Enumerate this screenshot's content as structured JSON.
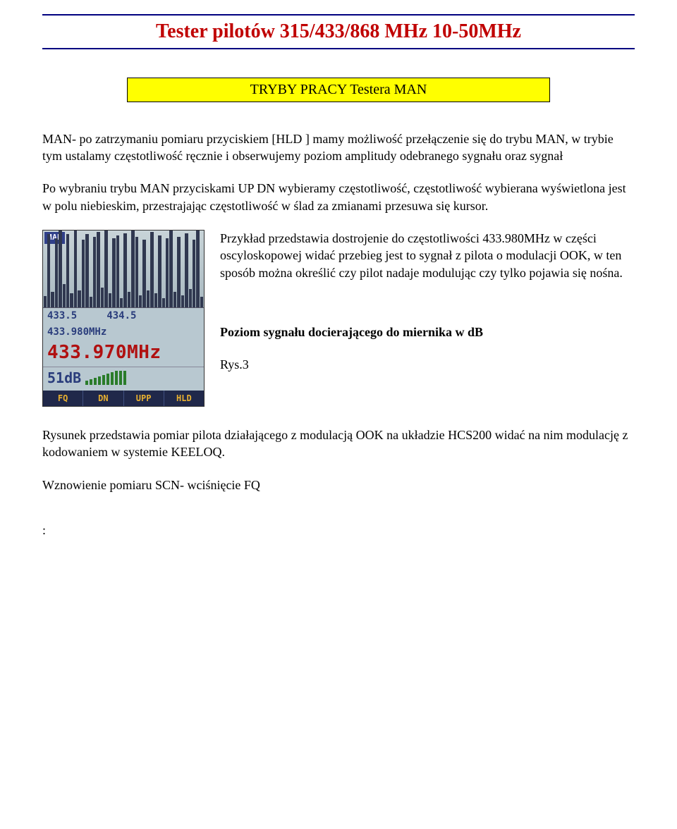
{
  "title": "Tester pilotów 315/433/868 MHz  10-50MHz",
  "banner": "TRYBY PRACY Testera   MAN",
  "intro": "MAN- po zatrzymaniu pomiaru przyciskiem  [HLD ] mamy możliwość przełączenie się do trybu MAN, w trybie tym ustalamy częstotliwość ręcznie i obserwujemy poziom amplitudy odebranego sygnału oraz sygnał",
  "intro2": "Po wybraniu trybu MAN przyciskami UP DN wybieramy częstotliwość, częstotliwość wybierana wyświetlona jest w polu niebieskim, przestrajając częstotliwość w ślad za zmianami przesuwa się kursor.",
  "side_para1": "Przykład przedstawia dostrojenie do częstotliwości 433.980MHz  w części oscyloskopowej widać przebieg jest to sygnał z pilota o modulacji OOK, w ten sposób można określić czy pilot nadaje modulując czy tylko pojawia się nośna.",
  "side_para2": "Poziom sygnału docierającego do miernika w dB",
  "side_para3": "Rys.3",
  "footer1": "Rysunek przedstawia pomiar pilota działającego z modulacją OOK na układzie HCS200 widać na nim modulację z kodowaniem w systemie KEELOQ.",
  "footer2": "Wznowienie pomiaru SCN-  wciśnięcie FQ",
  "colon": ":",
  "lcd": {
    "mode_tag": "MAN",
    "band_low": "433.5",
    "band_high": "434.5",
    "band_mid": "433.980MHz",
    "freq_big": "433.970MHz",
    "db": "51dB",
    "softkeys": [
      "FQ",
      "DN",
      "UPP",
      "HLD"
    ],
    "spectrum_heights": [
      15,
      95,
      20,
      90,
      100,
      30,
      95,
      18,
      100,
      22,
      88,
      95,
      14,
      92,
      98,
      26,
      100,
      18,
      90,
      94,
      12,
      96,
      20,
      100,
      92,
      16,
      88,
      22,
      98,
      18,
      94,
      12,
      90,
      100,
      20,
      92,
      16,
      96,
      24,
      88,
      100,
      14
    ],
    "sigbar_heights": [
      6,
      8,
      10,
      12,
      14,
      16,
      18,
      20,
      20,
      20
    ],
    "colors": {
      "title": "#c00000",
      "title_border": "#000080",
      "banner_bg": "#ffff00",
      "lcd_bg": "#b8c8d0",
      "lcd_blue": "#2a3d7c",
      "lcd_red": "#b01010",
      "lcd_green": "#2a7c2a",
      "softkey_bg": "#20284a",
      "softkey_fg": "#e8b030"
    }
  }
}
